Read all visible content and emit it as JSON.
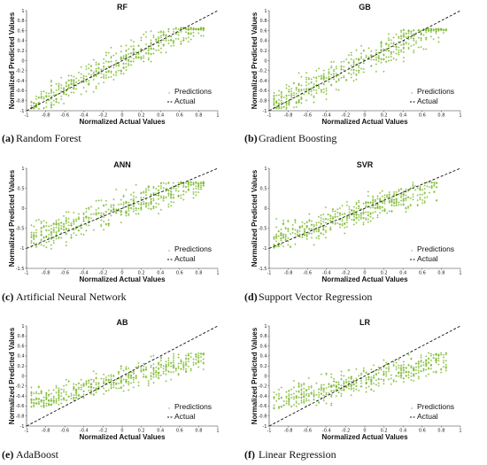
{
  "chart_data": [
    {
      "type": "scatter",
      "title": "RF",
      "caption_label": "(a)",
      "caption_text": "Random Forest",
      "xlabel": "Normalized Actual Values",
      "ylabel": "Normalized Predicted Values",
      "xlim": [
        -1,
        1
      ],
      "ylim": [
        -1,
        1
      ],
      "xticks": [
        "-1",
        "-0.8",
        "-0.6",
        "-0.4",
        "-0.2",
        "0",
        "0.2",
        "0.4",
        "0.6",
        "0.8",
        "1"
      ],
      "yticks": [
        "-1",
        "-0.8",
        "-0.6",
        "-0.4",
        "-0.2",
        "0",
        "0.2",
        "0.4",
        "0.6",
        "0.8",
        "1"
      ],
      "series": [
        {
          "name": "Predictions",
          "fit": {
            "slope": 0.95,
            "intercept": 0.0
          },
          "spread": 0.14,
          "x_range": [
            -0.95,
            0.85
          ],
          "y_clip": [
            -0.92,
            0.62
          ]
        },
        {
          "name": "Actual",
          "line": [
            [
              -1,
              -1
            ],
            [
              1,
              1
            ]
          ]
        }
      ],
      "legend": "bottom-right",
      "grid": false,
      "colors": {
        "points": "#79b829",
        "line": "#111111"
      }
    },
    {
      "type": "scatter",
      "title": "GB",
      "caption_label": "(b)",
      "caption_text": "Gradient Boosting",
      "xlabel": "Normalized Actual Values",
      "ylabel": "Normalized Predicted Values",
      "xlim": [
        -1,
        1
      ],
      "ylim": [
        -1,
        1
      ],
      "xticks": [
        "-1",
        "-0.8",
        "-0.6",
        "-0.4",
        "-0.2",
        "0",
        "0.2",
        "0.4",
        "0.6",
        "0.8",
        "1"
      ],
      "yticks": [
        "-1",
        "-0.8",
        "-0.6",
        "-0.4",
        "-0.2",
        "0",
        "0.2",
        "0.4",
        "0.6",
        "0.8",
        "1"
      ],
      "series": [
        {
          "name": "Predictions",
          "fit": {
            "slope": 0.93,
            "intercept": 0.0
          },
          "spread": 0.15,
          "x_range": [
            -0.95,
            0.85
          ],
          "y_clip": [
            -0.92,
            0.6
          ]
        },
        {
          "name": "Actual",
          "line": [
            [
              -1,
              -1
            ],
            [
              1,
              1
            ]
          ]
        }
      ],
      "legend": "bottom-right",
      "grid": false,
      "colors": {
        "points": "#79b829",
        "line": "#111111"
      }
    },
    {
      "type": "scatter",
      "title": "ANN",
      "caption_label": "(c)",
      "caption_text": "Artificial Neural Network",
      "xlabel": "Normalized Actual Values",
      "ylabel": "Normalized Predicted Values",
      "xlim": [
        -1,
        1
      ],
      "ylim": [
        -1.5,
        1
      ],
      "xticks": [
        "-1",
        "-0.8",
        "-0.6",
        "-0.4",
        "-0.2",
        "0",
        "0.2",
        "0.4",
        "0.6",
        "0.8",
        "1"
      ],
      "yticks": [
        "-1.5",
        "-1",
        "-0.5",
        "0",
        "0.5",
        "1"
      ],
      "series": [
        {
          "name": "Predictions",
          "fit": {
            "slope": 0.8,
            "intercept": 0.0
          },
          "spread": 0.17,
          "x_range": [
            -0.95,
            0.85
          ],
          "y_clip": [
            -1.0,
            0.62
          ]
        },
        {
          "name": "Actual",
          "line": [
            [
              -1,
              -1
            ],
            [
              1,
              1
            ]
          ]
        }
      ],
      "legend": "bottom-right",
      "grid": false,
      "colors": {
        "points": "#79b829",
        "line": "#111111"
      }
    },
    {
      "type": "scatter",
      "title": "SVR",
      "caption_label": "(d)",
      "caption_text": "Support Vector Regression",
      "xlabel": "Normalized Actual Values",
      "ylabel": "Normalized Predicted Values",
      "xlim": [
        -1,
        1
      ],
      "ylim": [
        -1.5,
        1
      ],
      "xticks": [
        "-1",
        "-0.8",
        "-0.6",
        "-0.4",
        "-0.2",
        "0",
        "0.2",
        "0.4",
        "0.6",
        "0.8",
        "1"
      ],
      "yticks": [
        "-1.5",
        "-1",
        "-0.5",
        "0",
        "0.5",
        "1"
      ],
      "series": [
        {
          "name": "Predictions",
          "fit": {
            "slope": 0.75,
            "intercept": -0.05
          },
          "spread": 0.16,
          "x_range": [
            -0.95,
            0.75
          ],
          "y_clip": [
            -0.95,
            0.62
          ]
        },
        {
          "name": "Actual",
          "line": [
            [
              -1,
              -1
            ],
            [
              1,
              1
            ]
          ]
        }
      ],
      "legend": "bottom-right",
      "grid": false,
      "colors": {
        "points": "#79b829",
        "line": "#111111"
      }
    },
    {
      "type": "scatter",
      "title": "AB",
      "caption_label": "(e)",
      "caption_text": "AdaBoost",
      "xlabel": "Normalized Actual Values",
      "ylabel": "Normalized Predicted Values",
      "xlim": [
        -1,
        1
      ],
      "ylim": [
        -1,
        1
      ],
      "xticks": [
        "-1",
        "-0.8",
        "-0.6",
        "-0.4",
        "-0.2",
        "0",
        "0.2",
        "0.4",
        "0.6",
        "0.8",
        "1"
      ],
      "yticks": [
        "-1",
        "-0.8",
        "-0.6",
        "-0.4",
        "-0.2",
        "0",
        "0.2",
        "0.4",
        "0.6",
        "0.8",
        "1"
      ],
      "series": [
        {
          "name": "Predictions",
          "fit": {
            "slope": 0.5,
            "intercept": -0.05
          },
          "spread": 0.12,
          "x_range": [
            -0.95,
            0.85
          ],
          "y_clip": [
            -0.58,
            0.42
          ]
        },
        {
          "name": "Actual",
          "line": [
            [
              -1,
              -1
            ],
            [
              1,
              1
            ]
          ]
        }
      ],
      "legend": "bottom-right",
      "grid": false,
      "colors": {
        "points": "#79b829",
        "line": "#111111"
      }
    },
    {
      "type": "scatter",
      "title": "LR",
      "caption_label": "(f)",
      "caption_text": "Linear Regression",
      "xlabel": "Normalized Actual Values",
      "ylabel": "Normalized Predicted Values",
      "xlim": [
        -1,
        1
      ],
      "ylim": [
        -1,
        1
      ],
      "xticks": [
        "-1",
        "-0.8",
        "-0.6",
        "-0.4",
        "-0.2",
        "0",
        "0.2",
        "0.4",
        "0.6",
        "0.8",
        "1"
      ],
      "yticks": [
        "-1",
        "-0.8",
        "-0.6",
        "-0.4",
        "-0.2",
        "0",
        "0.2",
        "0.4",
        "0.6",
        "0.8",
        "1"
      ],
      "series": [
        {
          "name": "Predictions",
          "fit": {
            "slope": 0.47,
            "intercept": -0.07
          },
          "spread": 0.12,
          "x_range": [
            -0.95,
            0.85
          ],
          "y_clip": [
            -0.6,
            0.42
          ]
        },
        {
          "name": "Actual",
          "line": [
            [
              -1,
              -1
            ],
            [
              1,
              1
            ]
          ]
        }
      ],
      "legend": "bottom-right",
      "grid": false,
      "colors": {
        "points": "#79b829",
        "line": "#111111"
      }
    }
  ]
}
